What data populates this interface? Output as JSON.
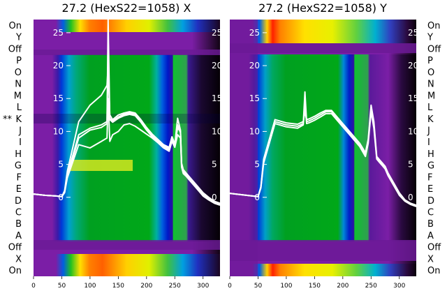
{
  "chart_data": [
    {
      "type": "heatmap",
      "title": "27.2 (HexS22=1058) X",
      "xticks": [
        0,
        50,
        100,
        150,
        200,
        250,
        300
      ],
      "xlim": [
        0,
        330
      ],
      "yticks": [
        0,
        5,
        10,
        15,
        20,
        25
      ],
      "ylim": [
        -12,
        27
      ],
      "row_labels": [
        "On",
        "Y",
        "Off",
        "P",
        "O",
        "N",
        "M",
        "L",
        "K",
        "J",
        "I",
        "H",
        "G",
        "F",
        "E",
        "D",
        "C",
        "B",
        "A",
        "Off",
        "X",
        "On"
      ],
      "marker": "**",
      "marker_row": "K",
      "line_x": [
        0,
        20,
        40,
        50,
        55,
        60,
        80,
        100,
        120,
        130,
        132,
        135,
        140,
        150,
        160,
        170,
        180,
        190,
        200,
        210,
        220,
        230,
        240,
        245,
        250,
        255,
        260,
        262,
        265,
        270,
        275,
        280,
        290,
        300,
        310,
        320,
        330
      ],
      "lines": [
        [
          0.5,
          0.3,
          0.2,
          0.1,
          0.8,
          3.5,
          9.5,
          10.5,
          11.0,
          11.5,
          27.0,
          12.0,
          11.6,
          12.2,
          12.6,
          12.8,
          12.6,
          11.6,
          10.4,
          9.4,
          8.6,
          7.8,
          7.4,
          9.0,
          8.0,
          12.0,
          10.2,
          5.0,
          4.0,
          3.5,
          3.0,
          2.5,
          1.5,
          0.5,
          -0.2,
          -0.7,
          -1.0
        ],
        [
          0.5,
          0.3,
          0.2,
          0.1,
          0.8,
          3.2,
          9.0,
          10.2,
          10.6,
          11.2,
          22.0,
          11.8,
          11.4,
          12.0,
          12.4,
          12.6,
          12.4,
          11.4,
          10.2,
          9.2,
          8.4,
          7.6,
          7.2,
          8.8,
          7.8,
          11.0,
          9.8,
          4.8,
          3.8,
          3.3,
          2.8,
          2.3,
          1.3,
          0.3,
          -0.3,
          -0.8,
          -1.1
        ],
        [
          0.5,
          0.3,
          0.2,
          0.1,
          1.0,
          4.0,
          11.5,
          14.0,
          15.5,
          17.0,
          20.0,
          12.5,
          11.8,
          12.5,
          12.8,
          13.0,
          12.8,
          11.8,
          10.6,
          9.6,
          8.8,
          8.0,
          7.6,
          9.2,
          8.2,
          10.5,
          10.0,
          5.2,
          4.2,
          3.7,
          3.2,
          2.7,
          1.7,
          0.7,
          0.0,
          -0.6,
          -0.9
        ],
        [
          0.5,
          0.3,
          0.2,
          0.1,
          0.7,
          3.0,
          8.0,
          7.5,
          8.5,
          9.0,
          15.0,
          8.5,
          9.5,
          10.0,
          11.0,
          11.2,
          10.8,
          10.2,
          9.6,
          9.0,
          8.3,
          7.5,
          7.0,
          8.5,
          7.6,
          9.5,
          9.0,
          4.6,
          3.6,
          3.2,
          2.7,
          2.2,
          1.2,
          0.2,
          -0.4,
          -0.9,
          -1.2
        ]
      ]
    },
    {
      "type": "heatmap",
      "title": "27.2 (HexS22=1058) Y",
      "xticks": [
        0,
        50,
        100,
        150,
        200,
        250,
        300
      ],
      "xlim": [
        0,
        330
      ],
      "yticks": [
        0,
        5,
        10,
        15,
        20,
        25
      ],
      "ylim": [
        -12,
        27
      ],
      "row_labels": [
        "On",
        "Y",
        "Off",
        "P",
        "O",
        "N",
        "M",
        "L",
        "K",
        "J",
        "I",
        "H",
        "G",
        "F",
        "E",
        "D",
        "C",
        "B",
        "A",
        "Off",
        "X",
        "On"
      ],
      "line_x": [
        0,
        20,
        40,
        50,
        55,
        60,
        80,
        100,
        120,
        130,
        133,
        136,
        140,
        150,
        160,
        170,
        180,
        190,
        200,
        210,
        220,
        230,
        240,
        245,
        250,
        255,
        260,
        265,
        270,
        275,
        280,
        290,
        300,
        310,
        320,
        330
      ],
      "lines": [
        [
          0.6,
          0.4,
          0.2,
          0.1,
          1.5,
          5.5,
          11.5,
          11.0,
          10.8,
          11.2,
          16.0,
          11.5,
          11.6,
          12.0,
          12.5,
          13.0,
          13.0,
          12.0,
          11.0,
          10.0,
          9.0,
          8.0,
          6.5,
          8.5,
          13.5,
          11.0,
          6.0,
          5.5,
          5.0,
          4.5,
          3.5,
          2.0,
          0.5,
          -0.5,
          -1.0,
          -1.3
        ],
        [
          0.6,
          0.4,
          0.2,
          0.1,
          1.4,
          5.2,
          11.2,
          10.7,
          10.5,
          11.0,
          14.0,
          11.2,
          11.3,
          11.7,
          12.2,
          12.7,
          12.7,
          11.7,
          10.7,
          9.7,
          8.7,
          7.7,
          6.2,
          8.2,
          13.0,
          10.5,
          5.8,
          5.3,
          4.8,
          4.3,
          3.3,
          1.8,
          0.3,
          -0.6,
          -1.1,
          -1.4
        ],
        [
          0.6,
          0.4,
          0.2,
          0.1,
          1.6,
          5.8,
          11.8,
          11.3,
          11.1,
          11.5,
          13.0,
          11.8,
          11.9,
          12.3,
          12.8,
          13.2,
          13.2,
          12.2,
          11.2,
          10.2,
          9.2,
          8.2,
          6.8,
          8.8,
          14.0,
          11.5,
          6.2,
          5.7,
          5.2,
          4.7,
          3.7,
          2.2,
          0.7,
          -0.4,
          -0.9,
          -1.2
        ]
      ]
    }
  ]
}
